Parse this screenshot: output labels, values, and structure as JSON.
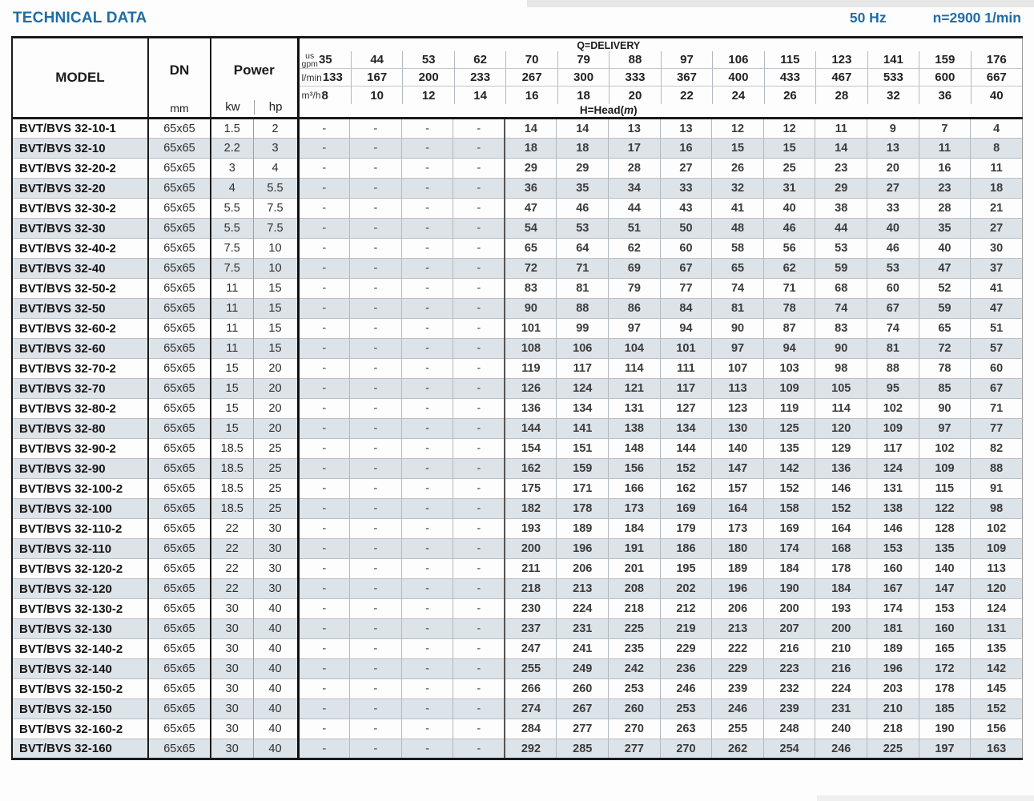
{
  "title": "TECHNICAL DATA",
  "frequency": "50 Hz",
  "speed": "n=2900 1/min",
  "colors": {
    "accent": "#1e6da6",
    "row_alt": "#dce3e9",
    "border_dark": "#1a1a1a",
    "border_light": "#b3b9be"
  },
  "table": {
    "model_header": "MODEL",
    "dn_header": "DN",
    "dn_unit": "mm",
    "power_header": "Power",
    "power_unit_kw": "kw",
    "power_unit_hp": "hp",
    "delivery_header": "Q=DELIVERY",
    "head_prefix": "H=Head(",
    "head_unit": "m",
    "head_suffix": ")",
    "q_unit_rows": [
      {
        "key": "gpm",
        "unit_lines": [
          "us",
          "gpm"
        ]
      },
      {
        "key": "lmin",
        "unit_lines": [
          "l/min"
        ]
      },
      {
        "key": "m3h",
        "unit_lines": [
          "m³/h"
        ]
      }
    ],
    "q_values": {
      "gpm": [
        "35",
        "44",
        "53",
        "62",
        "70",
        "79",
        "88",
        "97",
        "106",
        "115",
        "123",
        "141",
        "159",
        "176"
      ],
      "lmin": [
        "133",
        "167",
        "200",
        "233",
        "267",
        "300",
        "333",
        "367",
        "400",
        "433",
        "467",
        "533",
        "600",
        "667"
      ],
      "m3h": [
        "8",
        "10",
        "12",
        "14",
        "16",
        "18",
        "20",
        "22",
        "24",
        "26",
        "28",
        "32",
        "36",
        "40"
      ]
    },
    "rows": [
      {
        "model": "BVT/BVS 32-10-1",
        "dn": "65x65",
        "kw": "1.5",
        "hp": "2",
        "head": [
          "-",
          "-",
          "-",
          "-",
          "14",
          "14",
          "13",
          "13",
          "12",
          "12",
          "11",
          "9",
          "7",
          "4"
        ]
      },
      {
        "model": "BVT/BVS 32-10",
        "dn": "65x65",
        "kw": "2.2",
        "hp": "3",
        "head": [
          "-",
          "-",
          "-",
          "-",
          "18",
          "18",
          "17",
          "16",
          "15",
          "15",
          "14",
          "13",
          "11",
          "8"
        ]
      },
      {
        "model": "BVT/BVS 32-20-2",
        "dn": "65x65",
        "kw": "3",
        "hp": "4",
        "head": [
          "-",
          "-",
          "-",
          "-",
          "29",
          "29",
          "28",
          "27",
          "26",
          "25",
          "23",
          "20",
          "16",
          "11"
        ]
      },
      {
        "model": "BVT/BVS 32-20",
        "dn": "65x65",
        "kw": "4",
        "hp": "5.5",
        "head": [
          "-",
          "-",
          "-",
          "-",
          "36",
          "35",
          "34",
          "33",
          "32",
          "31",
          "29",
          "27",
          "23",
          "18"
        ]
      },
      {
        "model": "BVT/BVS 32-30-2",
        "dn": "65x65",
        "kw": "5.5",
        "hp": "7.5",
        "head": [
          "-",
          "-",
          "-",
          "-",
          "47",
          "46",
          "44",
          "43",
          "41",
          "40",
          "38",
          "33",
          "28",
          "21"
        ]
      },
      {
        "model": "BVT/BVS 32-30",
        "dn": "65x65",
        "kw": "5.5",
        "hp": "7.5",
        "head": [
          "-",
          "-",
          "-",
          "-",
          "54",
          "53",
          "51",
          "50",
          "48",
          "46",
          "44",
          "40",
          "35",
          "27"
        ]
      },
      {
        "model": "BVT/BVS 32-40-2",
        "dn": "65x65",
        "kw": "7.5",
        "hp": "10",
        "head": [
          "-",
          "-",
          "-",
          "-",
          "65",
          "64",
          "62",
          "60",
          "58",
          "56",
          "53",
          "46",
          "40",
          "30"
        ]
      },
      {
        "model": "BVT/BVS 32-40",
        "dn": "65x65",
        "kw": "7.5",
        "hp": "10",
        "head": [
          "-",
          "-",
          "-",
          "-",
          "72",
          "71",
          "69",
          "67",
          "65",
          "62",
          "59",
          "53",
          "47",
          "37"
        ]
      },
      {
        "model": "BVT/BVS 32-50-2",
        "dn": "65x65",
        "kw": "11",
        "hp": "15",
        "head": [
          "-",
          "-",
          "-",
          "-",
          "83",
          "81",
          "79",
          "77",
          "74",
          "71",
          "68",
          "60",
          "52",
          "41"
        ]
      },
      {
        "model": "BVT/BVS 32-50",
        "dn": "65x65",
        "kw": "11",
        "hp": "15",
        "head": [
          "-",
          "-",
          "-",
          "-",
          "90",
          "88",
          "86",
          "84",
          "81",
          "78",
          "74",
          "67",
          "59",
          "47"
        ]
      },
      {
        "model": "BVT/BVS 32-60-2",
        "dn": "65x65",
        "kw": "11",
        "hp": "15",
        "head": [
          "-",
          "-",
          "-",
          "-",
          "101",
          "99",
          "97",
          "94",
          "90",
          "87",
          "83",
          "74",
          "65",
          "51"
        ]
      },
      {
        "model": "BVT/BVS 32-60",
        "dn": "65x65",
        "kw": "11",
        "hp": "15",
        "head": [
          "-",
          "-",
          "-",
          "-",
          "108",
          "106",
          "104",
          "101",
          "97",
          "94",
          "90",
          "81",
          "72",
          "57"
        ]
      },
      {
        "model": "BVT/BVS 32-70-2",
        "dn": "65x65",
        "kw": "15",
        "hp": "20",
        "head": [
          "-",
          "-",
          "-",
          "-",
          "119",
          "117",
          "114",
          "111",
          "107",
          "103",
          "98",
          "88",
          "78",
          "60"
        ]
      },
      {
        "model": "BVT/BVS 32-70",
        "dn": "65x65",
        "kw": "15",
        "hp": "20",
        "head": [
          "-",
          "-",
          "-",
          "-",
          "126",
          "124",
          "121",
          "117",
          "113",
          "109",
          "105",
          "95",
          "85",
          "67"
        ]
      },
      {
        "model": "BVT/BVS 32-80-2",
        "dn": "65x65",
        "kw": "15",
        "hp": "20",
        "head": [
          "-",
          "-",
          "-",
          "-",
          "136",
          "134",
          "131",
          "127",
          "123",
          "119",
          "114",
          "102",
          "90",
          "71"
        ]
      },
      {
        "model": "BVT/BVS 32-80",
        "dn": "65x65",
        "kw": "15",
        "hp": "20",
        "head": [
          "-",
          "-",
          "-",
          "-",
          "144",
          "141",
          "138",
          "134",
          "130",
          "125",
          "120",
          "109",
          "97",
          "77"
        ]
      },
      {
        "model": "BVT/BVS 32-90-2",
        "dn": "65x65",
        "kw": "18.5",
        "hp": "25",
        "head": [
          "-",
          "-",
          "-",
          "-",
          "154",
          "151",
          "148",
          "144",
          "140",
          "135",
          "129",
          "117",
          "102",
          "82"
        ]
      },
      {
        "model": "BVT/BVS 32-90",
        "dn": "65x65",
        "kw": "18.5",
        "hp": "25",
        "head": [
          "-",
          "-",
          "-",
          "-",
          "162",
          "159",
          "156",
          "152",
          "147",
          "142",
          "136",
          "124",
          "109",
          "88"
        ]
      },
      {
        "model": "BVT/BVS 32-100-2",
        "dn": "65x65",
        "kw": "18.5",
        "hp": "25",
        "head": [
          "-",
          "-",
          "-",
          "-",
          "175",
          "171",
          "166",
          "162",
          "157",
          "152",
          "146",
          "131",
          "115",
          "91"
        ]
      },
      {
        "model": "BVT/BVS 32-100",
        "dn": "65x65",
        "kw": "18.5",
        "hp": "25",
        "head": [
          "-",
          "-",
          "-",
          "-",
          "182",
          "178",
          "173",
          "169",
          "164",
          "158",
          "152",
          "138",
          "122",
          "98"
        ]
      },
      {
        "model": "BVT/BVS 32-110-2",
        "dn": "65x65",
        "kw": "22",
        "hp": "30",
        "head": [
          "-",
          "-",
          "-",
          "-",
          "193",
          "189",
          "184",
          "179",
          "173",
          "169",
          "164",
          "146",
          "128",
          "102"
        ]
      },
      {
        "model": "BVT/BVS 32-110",
        "dn": "65x65",
        "kw": "22",
        "hp": "30",
        "head": [
          "-",
          "-",
          "-",
          "-",
          "200",
          "196",
          "191",
          "186",
          "180",
          "174",
          "168",
          "153",
          "135",
          "109"
        ]
      },
      {
        "model": "BVT/BVS 32-120-2",
        "dn": "65x65",
        "kw": "22",
        "hp": "30",
        "head": [
          "-",
          "-",
          "-",
          "-",
          "211",
          "206",
          "201",
          "195",
          "189",
          "184",
          "178",
          "160",
          "140",
          "113"
        ]
      },
      {
        "model": "BVT/BVS 32-120",
        "dn": "65x65",
        "kw": "22",
        "hp": "30",
        "head": [
          "-",
          "-",
          "-",
          "-",
          "218",
          "213",
          "208",
          "202",
          "196",
          "190",
          "184",
          "167",
          "147",
          "120"
        ]
      },
      {
        "model": "BVT/BVS 32-130-2",
        "dn": "65x65",
        "kw": "30",
        "hp": "40",
        "head": [
          "-",
          "-",
          "-",
          "-",
          "230",
          "224",
          "218",
          "212",
          "206",
          "200",
          "193",
          "174",
          "153",
          "124"
        ]
      },
      {
        "model": "BVT/BVS 32-130",
        "dn": "65x65",
        "kw": "30",
        "hp": "40",
        "head": [
          "-",
          "-",
          "-",
          "-",
          "237",
          "231",
          "225",
          "219",
          "213",
          "207",
          "200",
          "181",
          "160",
          "131"
        ]
      },
      {
        "model": "BVT/BVS 32-140-2",
        "dn": "65x65",
        "kw": "30",
        "hp": "40",
        "head": [
          "-",
          "-",
          "-",
          "-",
          "247",
          "241",
          "235",
          "229",
          "222",
          "216",
          "210",
          "189",
          "165",
          "135"
        ]
      },
      {
        "model": "BVT/BVS 32-140",
        "dn": "65x65",
        "kw": "30",
        "hp": "40",
        "head": [
          "-",
          "-",
          "-",
          "-",
          "255",
          "249",
          "242",
          "236",
          "229",
          "223",
          "216",
          "196",
          "172",
          "142"
        ]
      },
      {
        "model": "BVT/BVS 32-150-2",
        "dn": "65x65",
        "kw": "30",
        "hp": "40",
        "head": [
          "-",
          "-",
          "-",
          "-",
          "266",
          "260",
          "253",
          "246",
          "239",
          "232",
          "224",
          "203",
          "178",
          "145"
        ]
      },
      {
        "model": "BVT/BVS 32-150",
        "dn": "65x65",
        "kw": "30",
        "hp": "40",
        "head": [
          "-",
          "-",
          "-",
          "-",
          "274",
          "267",
          "260",
          "253",
          "246",
          "239",
          "231",
          "210",
          "185",
          "152"
        ]
      },
      {
        "model": "BVT/BVS 32-160-2",
        "dn": "65x65",
        "kw": "30",
        "hp": "40",
        "head": [
          "-",
          "-",
          "-",
          "-",
          "284",
          "277",
          "270",
          "263",
          "255",
          "248",
          "240",
          "218",
          "190",
          "156"
        ]
      },
      {
        "model": "BVT/BVS 32-160",
        "dn": "65x65",
        "kw": "30",
        "hp": "40",
        "head": [
          "-",
          "-",
          "-",
          "-",
          "292",
          "285",
          "277",
          "270",
          "262",
          "254",
          "246",
          "225",
          "197",
          "163"
        ]
      }
    ]
  }
}
